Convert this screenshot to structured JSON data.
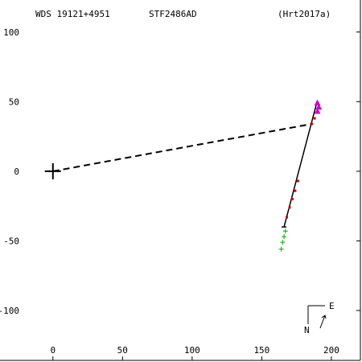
{
  "header": {
    "wds_id": "WDS 19121+4951",
    "discoverer": "STF2486AD",
    "reference": "(Hrt2017a)"
  },
  "compass": {
    "east_label": "E",
    "north_label": "N"
  },
  "chart_data": {
    "type": "scatter",
    "title": "",
    "xlabel": "",
    "ylabel": "",
    "xlim": [
      -38,
      222
    ],
    "ylim": [
      -137,
      123
    ],
    "grid": false,
    "x_ticks": [
      0,
      50,
      100,
      150,
      200
    ],
    "x_tick_labels": [
      "0",
      "50",
      "100",
      "150",
      "200"
    ],
    "y_ticks": [
      100,
      50,
      0,
      -50,
      -100
    ],
    "y_tick_labels": [
      "100",
      "50",
      "0",
      "-50",
      "-100"
    ],
    "primary": {
      "x": 0,
      "y": 0,
      "marker": "plus"
    },
    "connector": {
      "from": [
        0,
        0
      ],
      "to": [
        186,
        34
      ],
      "style": "dashed"
    },
    "orbit_line": {
      "from": [
        166,
        -40
      ],
      "to": [
        190,
        51
      ],
      "style": "solid"
    },
    "series": [
      {
        "color": "#cc0000",
        "marker": "dot",
        "points": [
          [
            170,
            -26
          ],
          [
            172,
            -20
          ],
          [
            174,
            -14
          ],
          [
            176,
            -7
          ],
          [
            168,
            -33
          ],
          [
            186,
            34
          ],
          [
            188,
            38
          ]
        ]
      },
      {
        "color": "#00aa00",
        "marker": "plus",
        "points": [
          [
            167,
            -43
          ],
          [
            166,
            -47
          ],
          [
            165,
            -51
          ],
          [
            164,
            -56
          ]
        ]
      },
      {
        "color": "#cc00cc",
        "marker": "triangle",
        "points": [
          [
            190,
            43
          ],
          [
            191,
            46
          ],
          [
            190,
            49
          ]
        ]
      },
      {
        "color": "#000000",
        "marker": "tick",
        "points": [
          [
            166,
            -40
          ]
        ]
      }
    ]
  }
}
